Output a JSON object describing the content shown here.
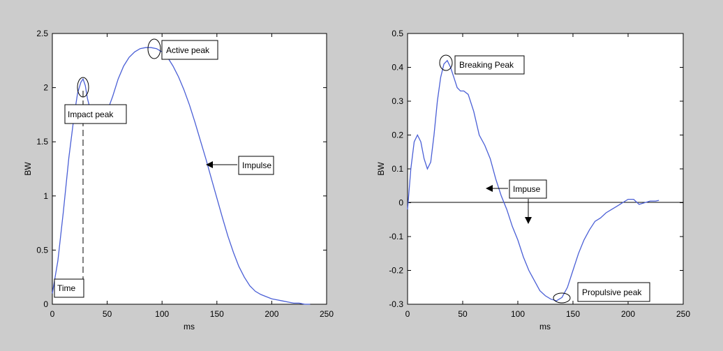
{
  "colors": {
    "figure_bg": "#cccccc",
    "axes_bg": "#ffffff",
    "line": "#4a5fd6",
    "annotation": "#000000"
  },
  "chart_data": [
    {
      "type": "line",
      "xlabel": "ms",
      "ylabel": "BW",
      "xlim": [
        0,
        250
      ],
      "ylim": [
        0,
        2.5
      ],
      "xticks": [
        "0",
        "50",
        "100",
        "150",
        "200",
        "250"
      ],
      "yticks": [
        "0",
        "0.5",
        "1",
        "1.5",
        "2",
        "2.5"
      ],
      "grid": false,
      "series": [
        {
          "x": [
            0,
            5,
            10,
            15,
            20,
            23,
            26,
            28,
            30,
            32,
            35,
            40,
            45,
            50,
            55,
            60,
            65,
            70,
            75,
            80,
            85,
            90,
            95,
            100,
            105,
            110,
            115,
            120,
            125,
            130,
            135,
            140,
            145,
            150,
            155,
            160,
            165,
            170,
            175,
            180,
            185,
            190,
            195,
            200,
            205,
            210,
            215,
            220,
            225,
            230,
            235
          ],
          "y": [
            0.1,
            0.4,
            0.85,
            1.35,
            1.75,
            1.95,
            2.05,
            2.08,
            2.02,
            1.9,
            1.78,
            1.74,
            1.73,
            1.78,
            1.92,
            2.08,
            2.2,
            2.28,
            2.33,
            2.36,
            2.37,
            2.37,
            2.36,
            2.33,
            2.28,
            2.2,
            2.1,
            1.98,
            1.84,
            1.68,
            1.51,
            1.34,
            1.16,
            0.98,
            0.8,
            0.63,
            0.48,
            0.35,
            0.25,
            0.17,
            0.12,
            0.09,
            0.07,
            0.05,
            0.04,
            0.03,
            0.02,
            0.01,
            0.01,
            0.0,
            0.0
          ]
        }
      ],
      "annotations": [
        {
          "text": "Active peak",
          "point": [
            93,
            2.37
          ]
        },
        {
          "text": "Impact peak",
          "point": [
            28,
            2.02
          ]
        },
        {
          "text": "Impulse",
          "point": [
            140,
            1.3
          ]
        },
        {
          "text": "Time",
          "point": [
            28,
            0.0
          ]
        }
      ]
    },
    {
      "type": "line",
      "xlabel": "ms",
      "ylabel": "BW",
      "xlim": [
        0,
        250
      ],
      "ylim": [
        -0.3,
        0.5
      ],
      "xticks": [
        "0",
        "50",
        "100",
        "150",
        "200",
        "250"
      ],
      "yticks": [
        "-0.3",
        "-0.2",
        "-0.1",
        "0",
        "0.1",
        "0.2",
        "0.3",
        "0.4",
        "0.5"
      ],
      "grid": false,
      "zero_line": true,
      "series": [
        {
          "x": [
            0,
            3,
            6,
            9,
            12,
            15,
            18,
            21,
            24,
            27,
            30,
            33,
            36,
            39,
            42,
            45,
            48,
            51,
            55,
            60,
            65,
            70,
            75,
            80,
            85,
            90,
            95,
            100,
            105,
            110,
            115,
            120,
            125,
            130,
            135,
            140,
            145,
            150,
            155,
            160,
            165,
            170,
            175,
            180,
            185,
            190,
            195,
            200,
            205,
            210,
            215,
            220,
            225,
            228
          ],
          "y": [
            -0.02,
            0.1,
            0.18,
            0.2,
            0.18,
            0.13,
            0.1,
            0.12,
            0.2,
            0.3,
            0.37,
            0.41,
            0.42,
            0.4,
            0.37,
            0.34,
            0.33,
            0.33,
            0.32,
            0.27,
            0.2,
            0.17,
            0.13,
            0.07,
            0.02,
            -0.02,
            -0.07,
            -0.11,
            -0.16,
            -0.2,
            -0.23,
            -0.26,
            -0.275,
            -0.285,
            -0.29,
            -0.28,
            -0.25,
            -0.2,
            -0.15,
            -0.11,
            -0.08,
            -0.055,
            -0.045,
            -0.03,
            -0.02,
            -0.01,
            0.0,
            0.01,
            0.01,
            -0.005,
            0.0,
            0.005,
            0.005,
            0.007
          ]
        }
      ],
      "annotations": [
        {
          "text": "Breaking Peak",
          "point": [
            35,
            0.415
          ]
        },
        {
          "text": "Impuse",
          "point": [
            72,
            0.014
          ]
        },
        {
          "text": "Propulsive peak",
          "point": [
            140,
            -0.285
          ]
        }
      ]
    }
  ]
}
